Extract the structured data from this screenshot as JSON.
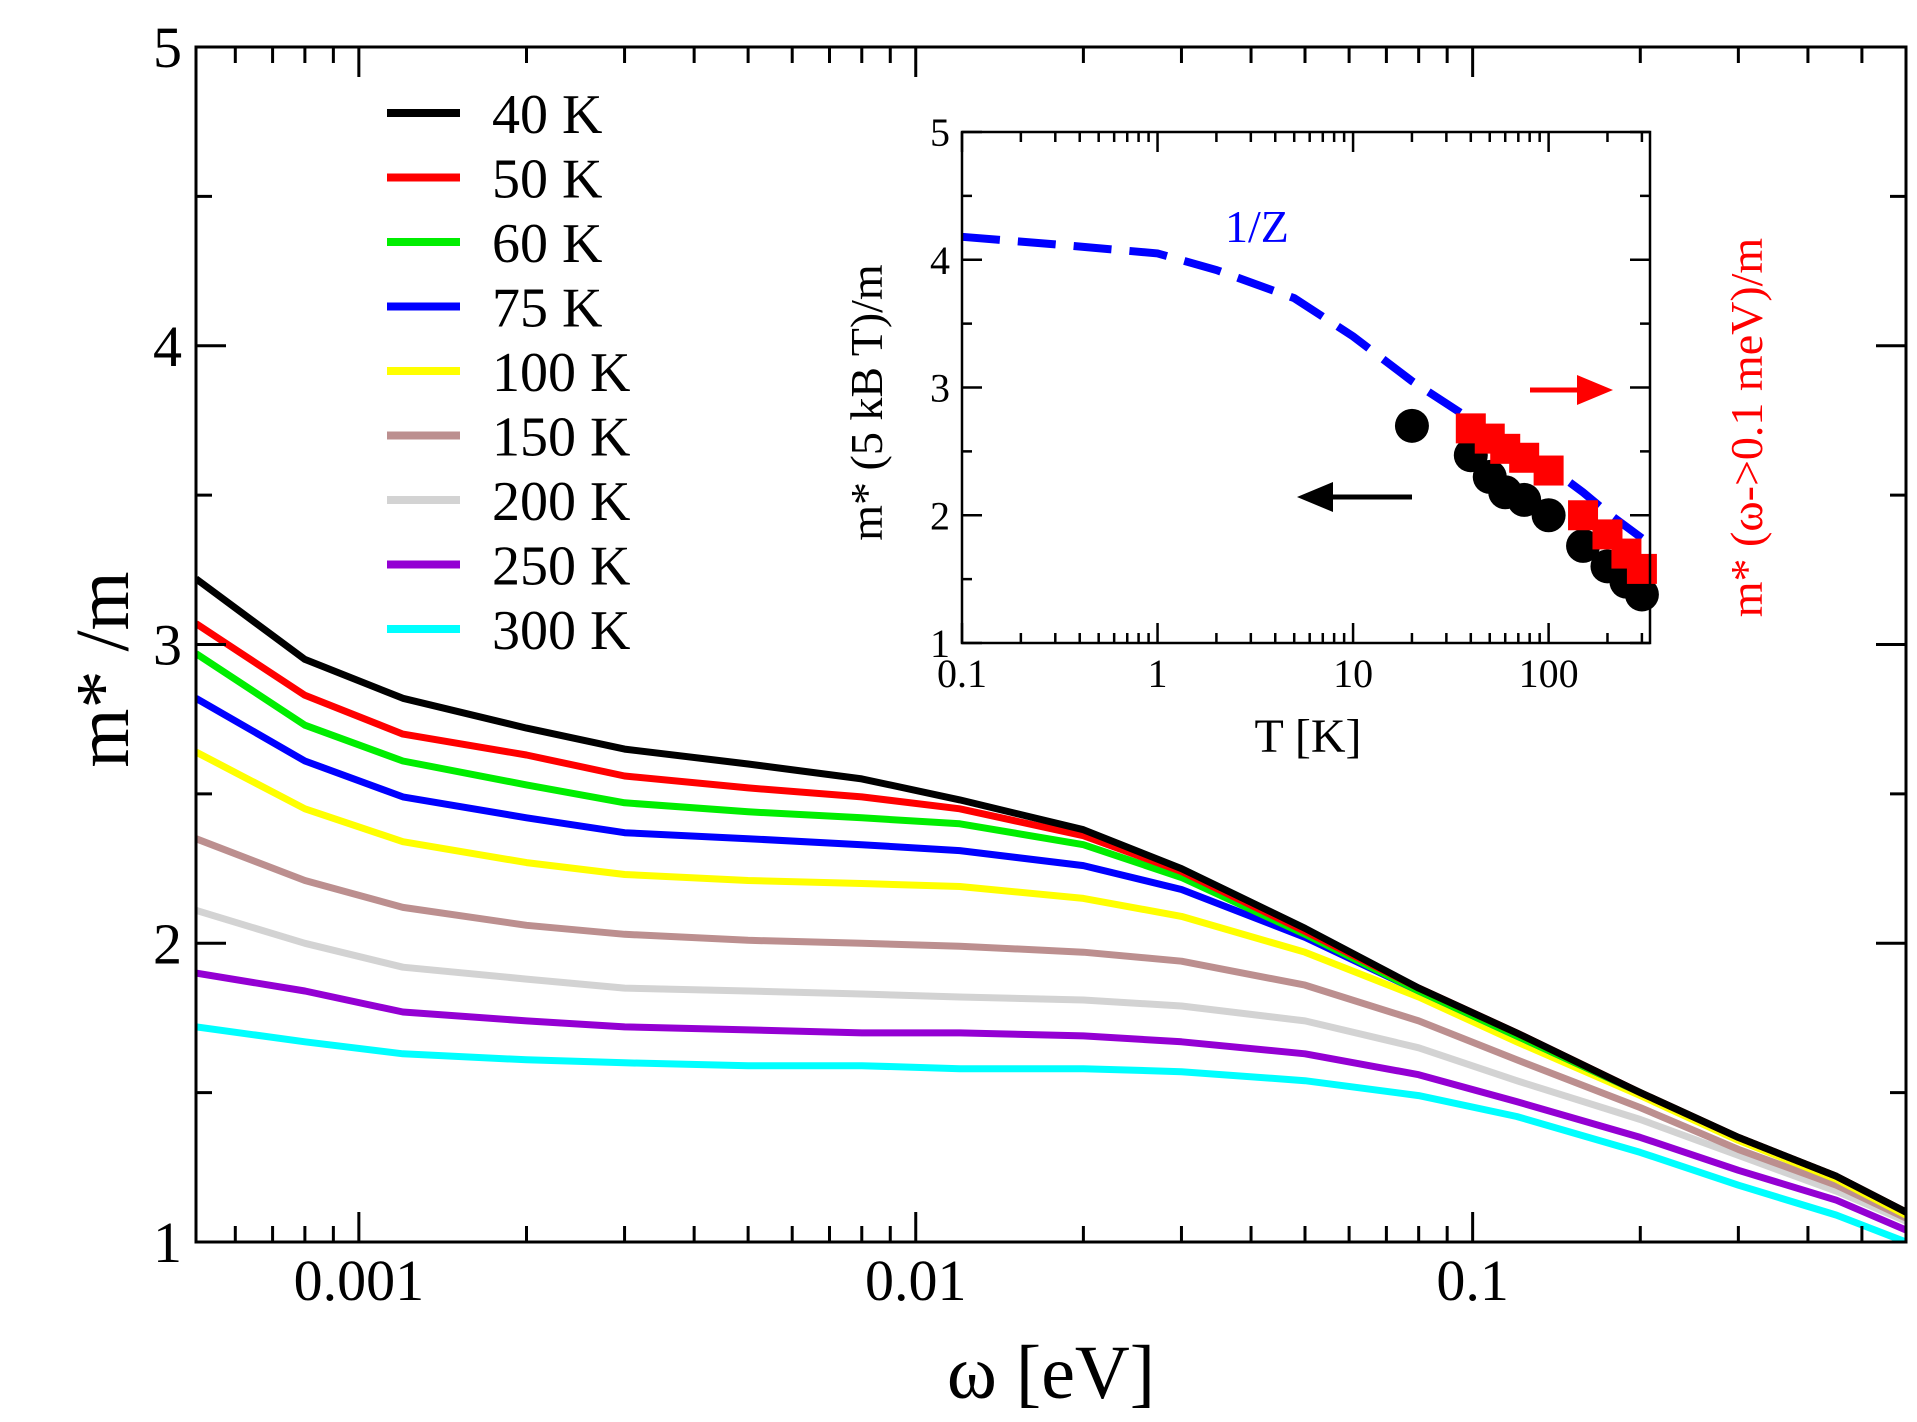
{
  "chart_data": [
    {
      "type": "line",
      "xlabel": "ω [eV]",
      "ylabel": "m* /m",
      "x_scale": "log",
      "xlim": [
        0.00051,
        0.6
      ],
      "ylim": [
        1,
        5
      ],
      "x_ticks": [
        0.001,
        0.01,
        0.1
      ],
      "x_tick_labels": [
        "0.001",
        "0.01",
        "0.1"
      ],
      "y_ticks": [
        1,
        2,
        3,
        4,
        5
      ],
      "y_tick_labels": [
        "1",
        "2",
        "3",
        "4",
        "5"
      ],
      "legend_position": "top-left",
      "x": [
        0.00051,
        0.0008,
        0.0012,
        0.002,
        0.003,
        0.005,
        0.008,
        0.012,
        0.02,
        0.03,
        0.05,
        0.08,
        0.12,
        0.2,
        0.3,
        0.45,
        0.6
      ],
      "series": [
        {
          "name": "40 K",
          "color": "#000000",
          "values": [
            3.22,
            2.95,
            2.82,
            2.72,
            2.65,
            2.6,
            2.55,
            2.48,
            2.38,
            2.25,
            2.05,
            1.85,
            1.7,
            1.5,
            1.35,
            1.22,
            1.1
          ]
        },
        {
          "name": "50 K",
          "color": "#ff0000",
          "values": [
            3.07,
            2.83,
            2.7,
            2.63,
            2.56,
            2.52,
            2.49,
            2.45,
            2.36,
            2.24,
            2.04,
            1.85,
            1.7,
            1.5,
            1.35,
            1.22,
            1.1
          ]
        },
        {
          "name": "60 K",
          "color": "#00ee00",
          "values": [
            2.97,
            2.73,
            2.61,
            2.53,
            2.47,
            2.44,
            2.42,
            2.4,
            2.33,
            2.22,
            2.03,
            1.84,
            1.69,
            1.5,
            1.35,
            1.22,
            1.1
          ]
        },
        {
          "name": "75 K",
          "color": "#0000ff",
          "values": [
            2.82,
            2.61,
            2.49,
            2.42,
            2.37,
            2.35,
            2.33,
            2.31,
            2.26,
            2.18,
            2.02,
            1.84,
            1.69,
            1.5,
            1.35,
            1.22,
            1.1
          ]
        },
        {
          "name": "100 K",
          "color": "#ffff00",
          "values": [
            2.64,
            2.45,
            2.34,
            2.27,
            2.23,
            2.21,
            2.2,
            2.19,
            2.15,
            2.09,
            1.97,
            1.82,
            1.67,
            1.49,
            1.34,
            1.21,
            1.09
          ]
        },
        {
          "name": "150 K",
          "color": "#bc8f8f",
          "values": [
            2.35,
            2.21,
            2.12,
            2.06,
            2.03,
            2.01,
            2.0,
            1.99,
            1.97,
            1.94,
            1.86,
            1.74,
            1.61,
            1.45,
            1.31,
            1.19,
            1.08
          ]
        },
        {
          "name": "200 K",
          "color": "#d3d3d3",
          "values": [
            2.11,
            2.0,
            1.92,
            1.88,
            1.85,
            1.84,
            1.83,
            1.82,
            1.81,
            1.79,
            1.74,
            1.65,
            1.54,
            1.41,
            1.29,
            1.17,
            1.07
          ]
        },
        {
          "name": "250 K",
          "color": "#9400d3",
          "values": [
            1.9,
            1.84,
            1.77,
            1.74,
            1.72,
            1.71,
            1.7,
            1.7,
            1.69,
            1.67,
            1.63,
            1.56,
            1.47,
            1.35,
            1.24,
            1.14,
            1.04
          ]
        },
        {
          "name": "300 K",
          "color": "#00ffff",
          "values": [
            1.72,
            1.67,
            1.63,
            1.61,
            1.6,
            1.59,
            1.59,
            1.58,
            1.58,
            1.57,
            1.54,
            1.49,
            1.42,
            1.3,
            1.19,
            1.09,
            1.0
          ]
        }
      ]
    },
    {
      "type": "scatter",
      "inset": true,
      "xlabel": "T [K]",
      "ylabel": "m* (5 kB T)/m",
      "ylabel_right": "m* (ω->0.1 meV)/m",
      "x_scale": "log",
      "xlim": [
        0.1,
        330
      ],
      "ylim": [
        1,
        5
      ],
      "x_ticks": [
        0.1,
        1,
        10,
        100
      ],
      "x_tick_labels": [
        "0.1",
        "1",
        "10",
        "100"
      ],
      "y_ticks": [
        1,
        2,
        3,
        4,
        5
      ],
      "y_tick_labels": [
        "1",
        "2",
        "3",
        "4",
        "5"
      ],
      "series": [
        {
          "kind": "dashed-line",
          "label": "1/Z",
          "color": "#0000ff",
          "x": [
            0.1,
            0.3,
            1,
            2,
            5,
            10,
            20,
            40,
            70,
            100,
            150,
            200,
            300
          ],
          "y": [
            4.18,
            4.12,
            4.05,
            3.92,
            3.7,
            3.4,
            3.05,
            2.75,
            2.52,
            2.38,
            2.18,
            2.02,
            1.82
          ]
        },
        {
          "kind": "circles",
          "color": "#000000",
          "x": [
            20,
            40,
            50,
            60,
            75,
            100,
            150,
            200,
            250,
            300
          ],
          "y": [
            2.7,
            2.47,
            2.3,
            2.18,
            2.12,
            2.0,
            1.76,
            1.6,
            1.48,
            1.38
          ]
        },
        {
          "kind": "squares",
          "color": "#ff0000",
          "x": [
            40,
            50,
            60,
            75,
            100,
            150,
            200,
            250,
            300
          ],
          "y": [
            2.68,
            2.6,
            2.52,
            2.45,
            2.35,
            2.0,
            1.85,
            1.7,
            1.58
          ]
        }
      ],
      "arrows": [
        {
          "color": "#000000",
          "direction": "left"
        },
        {
          "color": "#ff0000",
          "direction": "right"
        }
      ]
    }
  ]
}
